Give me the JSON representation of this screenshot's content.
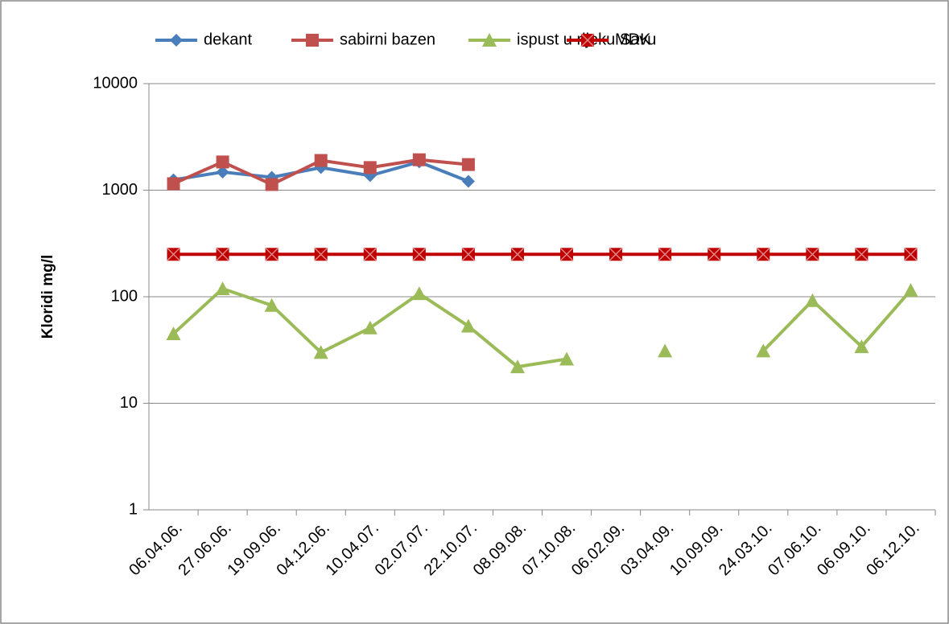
{
  "chart_data": {
    "type": "line",
    "y_label": "Kloridi mg/l",
    "categories": [
      "06.04.06.",
      "27.06.06.",
      "19.09.06.",
      "04.12.06.",
      "10.04.07.",
      "02.07.07.",
      "22.10.07.",
      "08.09.08.",
      "07.10.08.",
      "06.02.09.",
      "03.04.09.",
      "10.09.09.",
      "24.03.10.",
      "07.06.10.",
      "06.09.10.",
      "06.12.10."
    ],
    "series": [
      {
        "name": "dekant",
        "color": "#4a7ebb",
        "marker": "diamond",
        "values": [
          1250,
          1480,
          1320,
          1630,
          1370,
          1840,
          1210,
          null,
          null,
          null,
          null,
          null,
          null,
          null,
          null,
          null
        ]
      },
      {
        "name": "sabirni bazen",
        "color": "#c0504d",
        "marker": "square",
        "values": [
          1150,
          1840,
          1130,
          1900,
          1630,
          1930,
          1740,
          null,
          null,
          null,
          null,
          null,
          null,
          null,
          null,
          null
        ]
      },
      {
        "name": "ispust u rijeku Savu",
        "color": "#9bbb59",
        "marker": "triangle",
        "values": [
          45,
          119,
          83,
          30,
          51,
          107,
          53,
          22,
          26,
          null,
          31,
          null,
          31,
          92,
          34,
          115
        ]
      },
      {
        "name": "MDK",
        "color": "#c00000",
        "marker": "xsquare",
        "values": [
          250,
          250,
          250,
          250,
          250,
          250,
          250,
          250,
          250,
          250,
          250,
          250,
          250,
          250,
          250,
          250
        ]
      }
    ],
    "log_scale": true,
    "ylim": [
      1,
      10000
    ],
    "yticks": [
      1,
      10,
      100,
      1000,
      10000
    ],
    "grid": true,
    "legend": "top"
  }
}
